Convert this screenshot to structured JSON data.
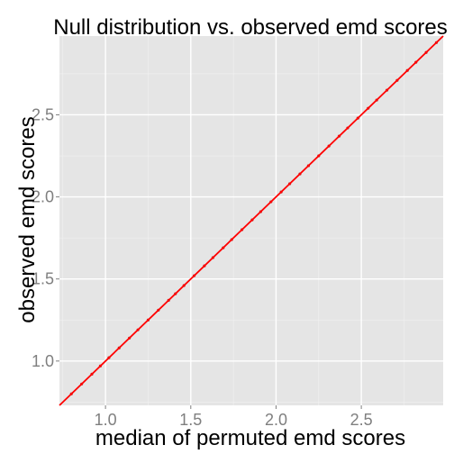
{
  "chart_data": {
    "type": "scatter",
    "title": "Null distribution vs. observed emd scores",
    "xlabel": "median of permuted emd scores",
    "ylabel": "observed emd scores",
    "xlim": [
      0.73,
      2.98
    ],
    "ylim": [
      0.73,
      2.98
    ],
    "x_ticks": [
      1.0,
      1.5,
      2.0,
      2.5
    ],
    "x_tick_labels": [
      "1.0",
      "1.5",
      "2.0",
      "2.5"
    ],
    "y_ticks": [
      1.0,
      1.5,
      2.0,
      2.5
    ],
    "y_tick_labels": [
      "1.0",
      "1.5",
      "2.0",
      "2.5"
    ],
    "grid": true,
    "reference_line": {
      "slope": 1,
      "intercept": 0,
      "color": "#ff0000"
    },
    "series": [
      {
        "color": "#cc2222",
        "points": [
          [
            0.8,
            0.8
          ],
          [
            0.86,
            0.86
          ],
          [
            0.92,
            0.92
          ],
          [
            0.97,
            0.97
          ],
          [
            1.02,
            1.02
          ],
          [
            1.08,
            1.08
          ],
          [
            1.14,
            1.14
          ],
          [
            1.19,
            1.19
          ],
          [
            1.25,
            1.25
          ],
          [
            1.31,
            1.31
          ],
          [
            1.37,
            1.37
          ],
          [
            1.41,
            1.41
          ],
          [
            1.46,
            1.46
          ],
          [
            1.52,
            1.52
          ],
          [
            1.58,
            1.58
          ],
          [
            1.63,
            1.63
          ],
          [
            1.69,
            1.69
          ],
          [
            1.74,
            1.74
          ],
          [
            1.8,
            1.8
          ],
          [
            1.86,
            1.86
          ],
          [
            1.91,
            1.91
          ],
          [
            1.97,
            1.97
          ],
          [
            2.03,
            2.03
          ],
          [
            2.08,
            2.08
          ],
          [
            2.14,
            2.14
          ],
          [
            2.19,
            2.19
          ],
          [
            2.25,
            2.25
          ],
          [
            2.31,
            2.31
          ],
          [
            2.37,
            2.37
          ],
          [
            2.42,
            2.42
          ],
          [
            2.48,
            2.48
          ],
          [
            2.54,
            2.54
          ],
          [
            2.59,
            2.59
          ],
          [
            2.65,
            2.65
          ],
          [
            2.71,
            2.71
          ],
          [
            2.77,
            2.77
          ],
          [
            2.82,
            2.82
          ],
          [
            2.88,
            2.88
          ],
          [
            2.94,
            2.94
          ]
        ]
      }
    ],
    "colors": {
      "panel_background": "#e5e5e5",
      "major_grid": "#ffffff",
      "minor_grid": "#f2f2f2",
      "tick_label": "#7f7f7f"
    }
  }
}
